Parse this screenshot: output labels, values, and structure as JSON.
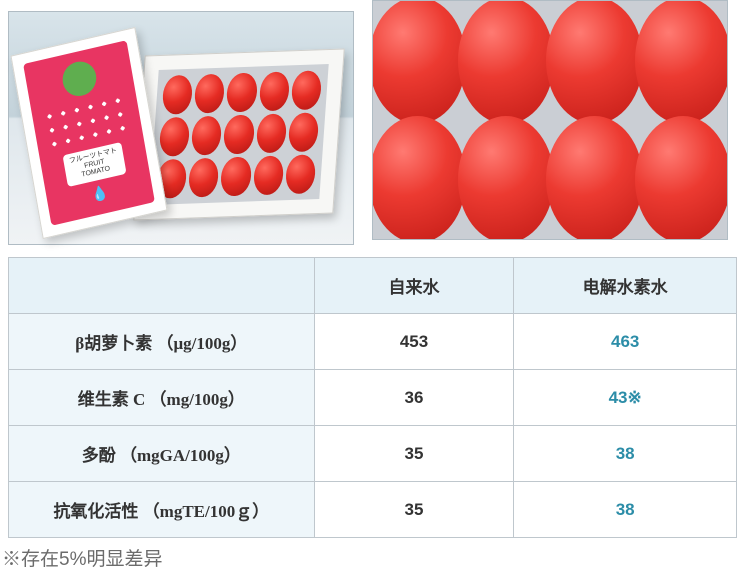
{
  "colors": {
    "v2": "#2c8da8",
    "v1": "#333333",
    "head_bg": "#e6f2f8",
    "row_bg": "#eef6fa",
    "border": "#bfc7cd",
    "note": "#6b6b6b"
  },
  "lid": {
    "line1": "フルーツトマト",
    "line2": "FRUIT",
    "line3": "TOMATO"
  },
  "table": {
    "head": {
      "c0": "",
      "c1": "自来水",
      "c2": "电解水素水"
    },
    "rows": [
      {
        "label": "β胡萝卜素 （μg/100g）",
        "v1": "453",
        "v2": "463"
      },
      {
        "label": "维生素 C （mg/100g）",
        "v1": "36",
        "v2": "43※"
      },
      {
        "label": "多酚 （mgGA/100g）",
        "v1": "35",
        "v2": "38"
      },
      {
        "label": "抗氧化活性 （mgTE/100ｇ）",
        "v1": "35",
        "v2": "38"
      }
    ]
  },
  "note": "※存在5%明显差异"
}
